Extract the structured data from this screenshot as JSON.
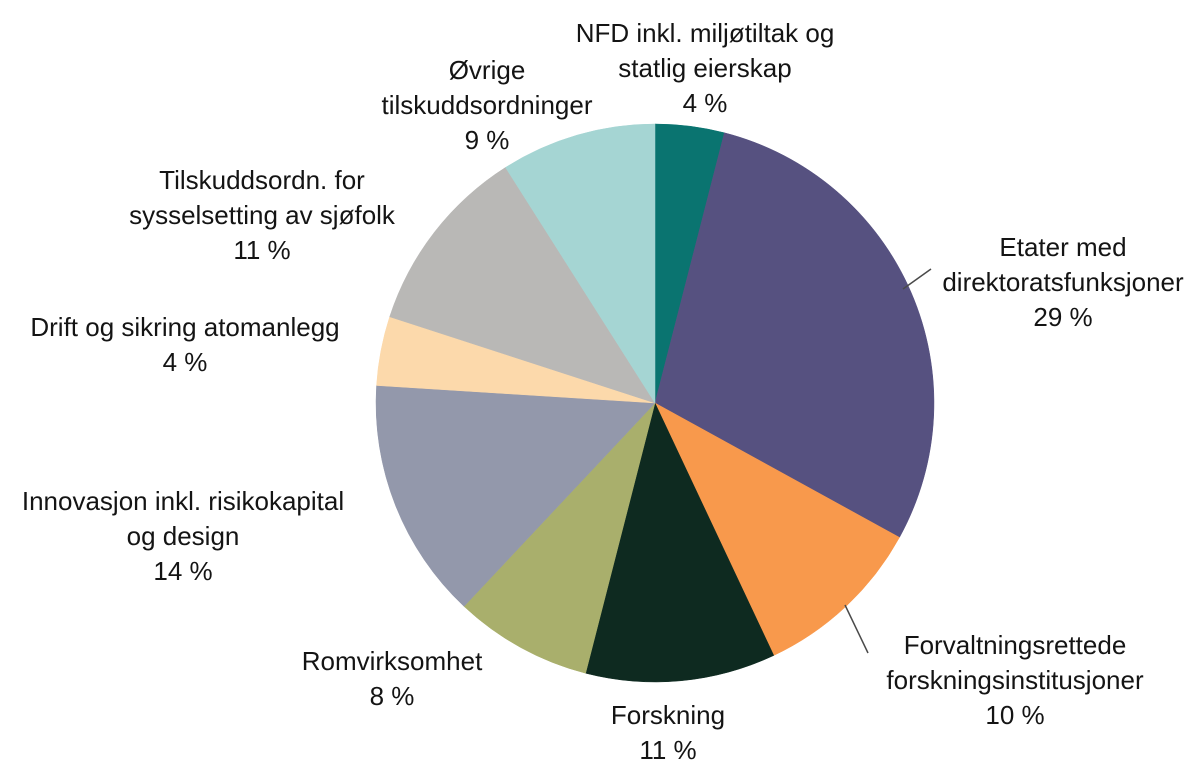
{
  "chart_data": {
    "type": "pie",
    "title": "",
    "direction": "clockwise",
    "start_angle_deg": 0,
    "unit": "%",
    "legend_position": "none",
    "slices": [
      {
        "label": "NFD inkl. miljøtiltak og statlig eierskap",
        "value": 4,
        "percent_label": "4 %",
        "color": "#0a7470",
        "display": "NFD inkl. miljøtiltak og\nstatlig eierskap\n4 %"
      },
      {
        "label": "Etater med direktoratsfunksjoner",
        "value": 29,
        "percent_label": "29 %",
        "color": "#565180",
        "display": "Etater med\ndirektoratsfunksjoner\n29 %"
      },
      {
        "label": "Forvaltningsrettede forskningsinstitusjoner",
        "value": 10,
        "percent_label": "10 %",
        "color": "#f8994c",
        "display": "Forvaltningsrettede\nforskningsinstitusjoner\n10 %"
      },
      {
        "label": "Forskning",
        "value": 11,
        "percent_label": "11 %",
        "color": "#0e2a20",
        "display": "Forskning\n11 %"
      },
      {
        "label": "Romvirksomhet",
        "value": 8,
        "percent_label": "8 %",
        "color": "#a9af6c",
        "display": "Romvirksomhet\n8 %"
      },
      {
        "label": "Innovasjon inkl. risikokapital og design",
        "value": 14,
        "percent_label": "14 %",
        "color": "#9398ab",
        "display": "Innovasjon inkl. risikokapital\nog design\n14 %"
      },
      {
        "label": "Drift og sikring atomanlegg",
        "value": 4,
        "percent_label": "4 %",
        "color": "#fcd9ab",
        "display": "Drift og sikring atomanlegg\n4 %"
      },
      {
        "label": "Tilskuddsordn. for sysselsetting av sjøfolk",
        "value": 11,
        "percent_label": "11 %",
        "color": "#b9b8b6",
        "display": "Tilskuddsordn. for\nsysselsetting av sjøfolk\n11 %"
      },
      {
        "label": "Øvrige tilskuddsordninger",
        "value": 9,
        "percent_label": "9 %",
        "color": "#a5d5d3",
        "display": "Øvrige\ntilskuddsordninger\n9 %"
      }
    ]
  }
}
